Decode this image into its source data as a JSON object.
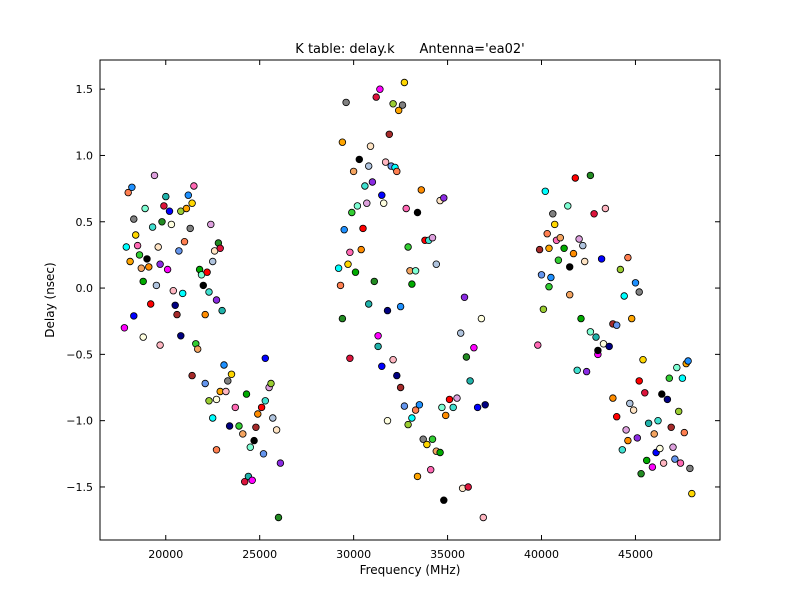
{
  "chart_data": {
    "type": "scatter",
    "title": "K table: delay.k      Antenna='ea02'",
    "xlabel": "Frequency (MHz)",
    "ylabel": "Delay (nsec)",
    "xlim": [
      16500,
      49500
    ],
    "ylim": [
      -1.9,
      1.72
    ],
    "grid": false,
    "legend": "none",
    "x_ticks": [
      20000,
      25000,
      30000,
      35000,
      40000,
      45000
    ],
    "y_ticks": [
      1.5,
      1.0,
      0.5,
      0.0,
      -0.5,
      -1.0,
      -1.5
    ],
    "x_tick_labels": [
      "20000",
      "25000",
      "30000",
      "35000",
      "40000",
      "45000"
    ],
    "y_tick_labels": [
      "1.5",
      "1.0",
      "0.5",
      "0.0",
      "−0.5",
      "−1.0",
      "−1.5"
    ],
    "palette": [
      "#00ffff",
      "#ff0000",
      "#000080",
      "#00aa00",
      "#ff00ff",
      "#ffd700",
      "#8a2be2",
      "#ff7f50",
      "#40e0d0",
      "#a52a2a",
      "#7fffd4",
      "#0000ff",
      "#ff69b4",
      "#228b22",
      "#ffa500",
      "#dda0dd",
      "#6495ed",
      "#000000",
      "#ffffe0",
      "#32cd32",
      "#dc143c",
      "#1e90ff",
      "#b0c4de",
      "#9acd32",
      "#ff8c00",
      "#ffb6c1",
      "#f4a460",
      "#20b2aa",
      "#808080",
      "#ffe4c4"
    ],
    "points": [
      [
        17900,
        0.31
      ],
      [
        18000,
        0.72
      ],
      [
        18100,
        0.2
      ],
      [
        18200,
        0.76
      ],
      [
        18300,
        0.52
      ],
      [
        18400,
        0.4
      ],
      [
        18500,
        0.32
      ],
      [
        18600,
        0.25
      ],
      [
        18700,
        0.15
      ],
      [
        18800,
        0.05
      ],
      [
        18900,
        0.6
      ],
      [
        19000,
        0.22
      ],
      [
        19100,
        0.16
      ],
      [
        19200,
        -0.12
      ],
      [
        19300,
        0.46
      ],
      [
        19400,
        0.85
      ],
      [
        19500,
        0.02
      ],
      [
        19600,
        0.31
      ],
      [
        19700,
        0.18
      ],
      [
        19800,
        0.5
      ],
      [
        19900,
        0.62
      ],
      [
        20000,
        0.69
      ],
      [
        20100,
        0.14
      ],
      [
        20200,
        0.58
      ],
      [
        20300,
        0.48
      ],
      [
        20400,
        -0.02
      ],
      [
        20500,
        -0.13
      ],
      [
        20600,
        -0.2
      ],
      [
        20700,
        0.28
      ],
      [
        20800,
        0.58
      ],
      [
        20900,
        -0.04
      ],
      [
        21000,
        0.35
      ],
      [
        21100,
        0.6
      ],
      [
        21200,
        0.7
      ],
      [
        21300,
        0.45
      ],
      [
        21400,
        0.64
      ],
      [
        21500,
        0.77
      ],
      [
        21600,
        -0.42
      ],
      [
        21700,
        -0.46
      ],
      [
        21800,
        0.14
      ],
      [
        21900,
        0.1
      ],
      [
        22000,
        0.02
      ],
      [
        22100,
        -0.2
      ],
      [
        22200,
        0.12
      ],
      [
        22300,
        -0.03
      ],
      [
        22400,
        0.48
      ],
      [
        22500,
        0.2
      ],
      [
        22600,
        0.28
      ],
      [
        22700,
        -0.09
      ],
      [
        22800,
        0.34
      ],
      [
        22900,
        0.3
      ],
      [
        23000,
        -0.17
      ],
      [
        17800,
        -0.3
      ],
      [
        18300,
        -0.21
      ],
      [
        18800,
        -0.37
      ],
      [
        19700,
        -0.43
      ],
      [
        20800,
        -0.36
      ],
      [
        21400,
        -0.66
      ],
      [
        22100,
        -0.72
      ],
      [
        22300,
        -0.85
      ],
      [
        22500,
        -0.98
      ],
      [
        22700,
        -1.22
      ],
      [
        22900,
        -0.78
      ],
      [
        23100,
        -0.58
      ],
      [
        23300,
        -0.7
      ],
      [
        23500,
        -0.65
      ],
      [
        23700,
        -0.9
      ],
      [
        23900,
        -1.04
      ],
      [
        24100,
        -1.1
      ],
      [
        24300,
        -0.8
      ],
      [
        24500,
        -1.2
      ],
      [
        24700,
        -1.15
      ],
      [
        24900,
        -0.95
      ],
      [
        25100,
        -0.9
      ],
      [
        25300,
        -0.85
      ],
      [
        25500,
        -0.75
      ],
      [
        25700,
        -0.98
      ],
      [
        25900,
        -1.07
      ],
      [
        26100,
        -1.32
      ],
      [
        26000,
        -1.73
      ],
      [
        24200,
        -1.46
      ],
      [
        24400,
        -1.42
      ],
      [
        24600,
        -1.45
      ],
      [
        25300,
        -0.53
      ],
      [
        22700,
        -0.84
      ],
      [
        23200,
        -0.78
      ],
      [
        23400,
        -1.04
      ],
      [
        24800,
        -1.05
      ],
      [
        25200,
        -1.25
      ],
      [
        25600,
        -0.72
      ],
      [
        29200,
        0.15
      ],
      [
        29300,
        0.02
      ],
      [
        29400,
        1.1
      ],
      [
        29500,
        0.44
      ],
      [
        29600,
        1.4
      ],
      [
        29700,
        0.18
      ],
      [
        29800,
        0.27
      ],
      [
        29900,
        0.57
      ],
      [
        30000,
        0.88
      ],
      [
        30100,
        0.12
      ],
      [
        30200,
        0.62
      ],
      [
        30300,
        0.97
      ],
      [
        30400,
        0.29
      ],
      [
        30500,
        0.45
      ],
      [
        30600,
        0.77
      ],
      [
        30700,
        0.64
      ],
      [
        30800,
        0.92
      ],
      [
        30900,
        1.07
      ],
      [
        31000,
        0.8
      ],
      [
        31100,
        0.05
      ],
      [
        31200,
        1.44
      ],
      [
        31300,
        -0.44
      ],
      [
        31400,
        1.5
      ],
      [
        31500,
        0.7
      ],
      [
        31600,
        0.64
      ],
      [
        31700,
        0.95
      ],
      [
        31800,
        -0.17
      ],
      [
        31900,
        1.16
      ],
      [
        32000,
        0.92
      ],
      [
        32100,
        1.39
      ],
      [
        32200,
        0.91
      ],
      [
        32300,
        0.88
      ],
      [
        32400,
        1.34
      ],
      [
        32500,
        -0.14
      ],
      [
        32600,
        1.38
      ],
      [
        32700,
        1.55
      ],
      [
        32800,
        0.6
      ],
      [
        32900,
        0.31
      ],
      [
        33000,
        0.13
      ],
      [
        33100,
        0.03
      ],
      [
        33300,
        0.13
      ],
      [
        33400,
        0.57
      ],
      [
        33600,
        0.74
      ],
      [
        33800,
        0.36
      ],
      [
        34000,
        0.36
      ],
      [
        34200,
        0.38
      ],
      [
        34400,
        0.18
      ],
      [
        34600,
        0.66
      ],
      [
        34800,
        0.68
      ],
      [
        29400,
        -0.23
      ],
      [
        29800,
        -0.53
      ],
      [
        30800,
        -0.12
      ],
      [
        31300,
        -0.36
      ],
      [
        31500,
        -0.59
      ],
      [
        31800,
        -1.0
      ],
      [
        32100,
        -0.54
      ],
      [
        32300,
        -0.66
      ],
      [
        32500,
        -0.75
      ],
      [
        32700,
        -0.89
      ],
      [
        32900,
        -1.03
      ],
      [
        33100,
        -0.98
      ],
      [
        33300,
        -0.92
      ],
      [
        33400,
        -1.42
      ],
      [
        33500,
        -0.88
      ],
      [
        33700,
        -1.14
      ],
      [
        33900,
        -1.18
      ],
      [
        34100,
        -1.37
      ],
      [
        34200,
        -1.14
      ],
      [
        34400,
        -1.23
      ],
      [
        34600,
        -1.24
      ],
      [
        34700,
        -0.9
      ],
      [
        34800,
        -1.6
      ],
      [
        34900,
        -0.96
      ],
      [
        35100,
        -0.84
      ],
      [
        35300,
        -0.9
      ],
      [
        35500,
        -0.83
      ],
      [
        35700,
        -0.34
      ],
      [
        35800,
        -1.51
      ],
      [
        35900,
        -0.07
      ],
      [
        36000,
        -0.52
      ],
      [
        36100,
        -1.5
      ],
      [
        36200,
        -0.7
      ],
      [
        36400,
        -0.45
      ],
      [
        36600,
        -0.9
      ],
      [
        36800,
        -0.23
      ],
      [
        36900,
        -1.73
      ],
      [
        37000,
        -0.88
      ],
      [
        39900,
        0.29
      ],
      [
        40000,
        0.1
      ],
      [
        40100,
        -0.16
      ],
      [
        40200,
        0.73
      ],
      [
        40300,
        0.41
      ],
      [
        40400,
        0.3
      ],
      [
        40500,
        0.08
      ],
      [
        40600,
        0.56
      ],
      [
        40700,
        0.48
      ],
      [
        40800,
        0.36
      ],
      [
        40900,
        0.21
      ],
      [
        41000,
        0.38
      ],
      [
        41200,
        0.3
      ],
      [
        41400,
        0.62
      ],
      [
        41500,
        0.16
      ],
      [
        41700,
        0.26
      ],
      [
        41800,
        0.83
      ],
      [
        41900,
        -0.62
      ],
      [
        42000,
        0.37
      ],
      [
        42200,
        0.32
      ],
      [
        42300,
        0.2
      ],
      [
        42400,
        -0.63
      ],
      [
        42600,
        0.85
      ],
      [
        42800,
        0.56
      ],
      [
        42900,
        -0.37
      ],
      [
        43000,
        -0.5
      ],
      [
        43200,
        0.22
      ],
      [
        43300,
        -0.42
      ],
      [
        43400,
        0.6
      ],
      [
        43600,
        -0.44
      ],
      [
        43800,
        -0.27
      ],
      [
        44000,
        -0.28
      ],
      [
        44200,
        0.14
      ],
      [
        44400,
        -0.06
      ],
      [
        44600,
        0.23
      ],
      [
        44800,
        -0.23
      ],
      [
        45000,
        0.04
      ],
      [
        45200,
        -0.03
      ],
      [
        45400,
        -0.54
      ],
      [
        39800,
        -0.43
      ],
      [
        40400,
        0.01
      ],
      [
        41500,
        -0.05
      ],
      [
        42100,
        -0.23
      ],
      [
        42600,
        -0.33
      ],
      [
        43000,
        -0.47
      ],
      [
        43800,
        -0.83
      ],
      [
        44000,
        -0.97
      ],
      [
        44300,
        -1.22
      ],
      [
        44500,
        -1.07
      ],
      [
        44700,
        -0.87
      ],
      [
        44900,
        -0.92
      ],
      [
        45100,
        -1.13
      ],
      [
        45300,
        -1.4
      ],
      [
        45500,
        -0.79
      ],
      [
        45700,
        -1.02
      ],
      [
        45900,
        -1.35
      ],
      [
        46100,
        -1.24
      ],
      [
        46300,
        -1.21
      ],
      [
        46500,
        -1.32
      ],
      [
        46700,
        -0.84
      ],
      [
        46900,
        -1.05
      ],
      [
        47100,
        -1.29
      ],
      [
        47300,
        -0.93
      ],
      [
        47500,
        -0.68
      ],
      [
        47600,
        -1.09
      ],
      [
        47700,
        -0.57
      ],
      [
        47800,
        -0.55
      ],
      [
        47900,
        -1.36
      ],
      [
        48000,
        -1.55
      ],
      [
        47400,
        -1.32
      ],
      [
        46800,
        -0.68
      ],
      [
        46000,
        -1.1
      ],
      [
        45600,
        -1.3
      ],
      [
        47200,
        -0.6
      ],
      [
        46400,
        -0.8
      ],
      [
        44600,
        -1.15
      ],
      [
        45200,
        -0.7
      ],
      [
        46200,
        -1.0
      ],
      [
        47000,
        -1.2
      ]
    ]
  }
}
